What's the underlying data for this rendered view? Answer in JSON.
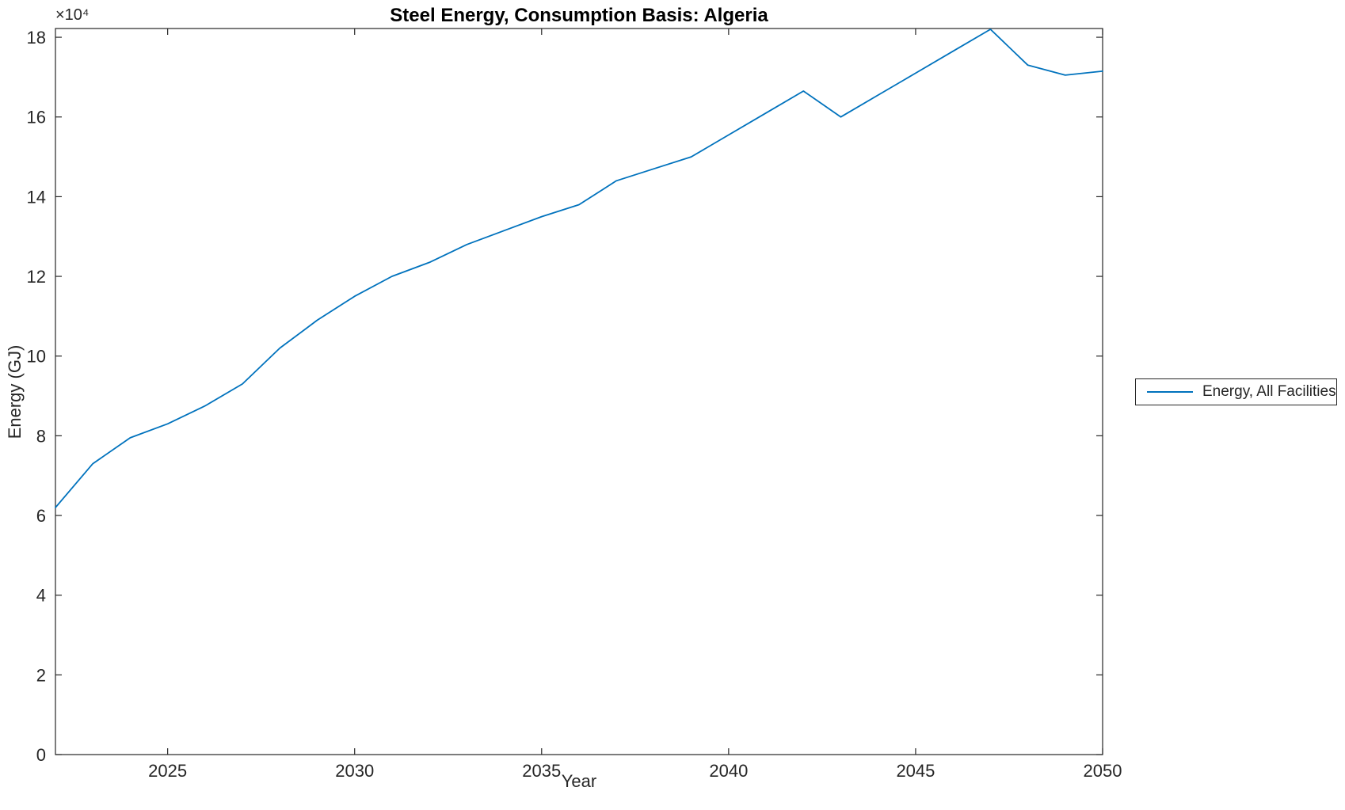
{
  "chart_data": {
    "type": "line",
    "title": "Steel Energy, Consumption Basis: Algeria",
    "xlabel": "Year",
    "ylabel": "Energy (GJ)",
    "y_axis_multiplier": "×10⁴",
    "xlim": [
      2022,
      2050
    ],
    "ylim": [
      0,
      182200
    ],
    "xticks": [
      2025,
      2030,
      2035,
      2040,
      2045,
      2050
    ],
    "yticks": [
      0,
      20000,
      40000,
      60000,
      80000,
      100000,
      120000,
      140000,
      160000,
      180000
    ],
    "ytick_labels": [
      "0",
      "2",
      "4",
      "6",
      "8",
      "10",
      "12",
      "14",
      "16",
      "18"
    ],
    "grid": false,
    "box": true,
    "legend_position": "right-outside",
    "axis_color": "#262626",
    "series": [
      {
        "name": "Energy, All Facilities",
        "color": "#0072BD",
        "x": [
          2022,
          2023,
          2024,
          2025,
          2026,
          2027,
          2028,
          2029,
          2030,
          2031,
          2032,
          2033,
          2034,
          2035,
          2036,
          2037,
          2038,
          2039,
          2040,
          2041,
          2042,
          2043,
          2044,
          2045,
          2046,
          2047,
          2048,
          2049,
          2050
        ],
        "values": [
          62000,
          73000,
          79500,
          83000,
          87500,
          93000,
          102000,
          109000,
          115000,
          120000,
          123500,
          128000,
          131500,
          135000,
          138000,
          144000,
          147000,
          150000,
          155500,
          161000,
          166500,
          160000,
          165500,
          171000,
          176500,
          182000,
          173000,
          170500,
          171500
        ]
      }
    ]
  }
}
